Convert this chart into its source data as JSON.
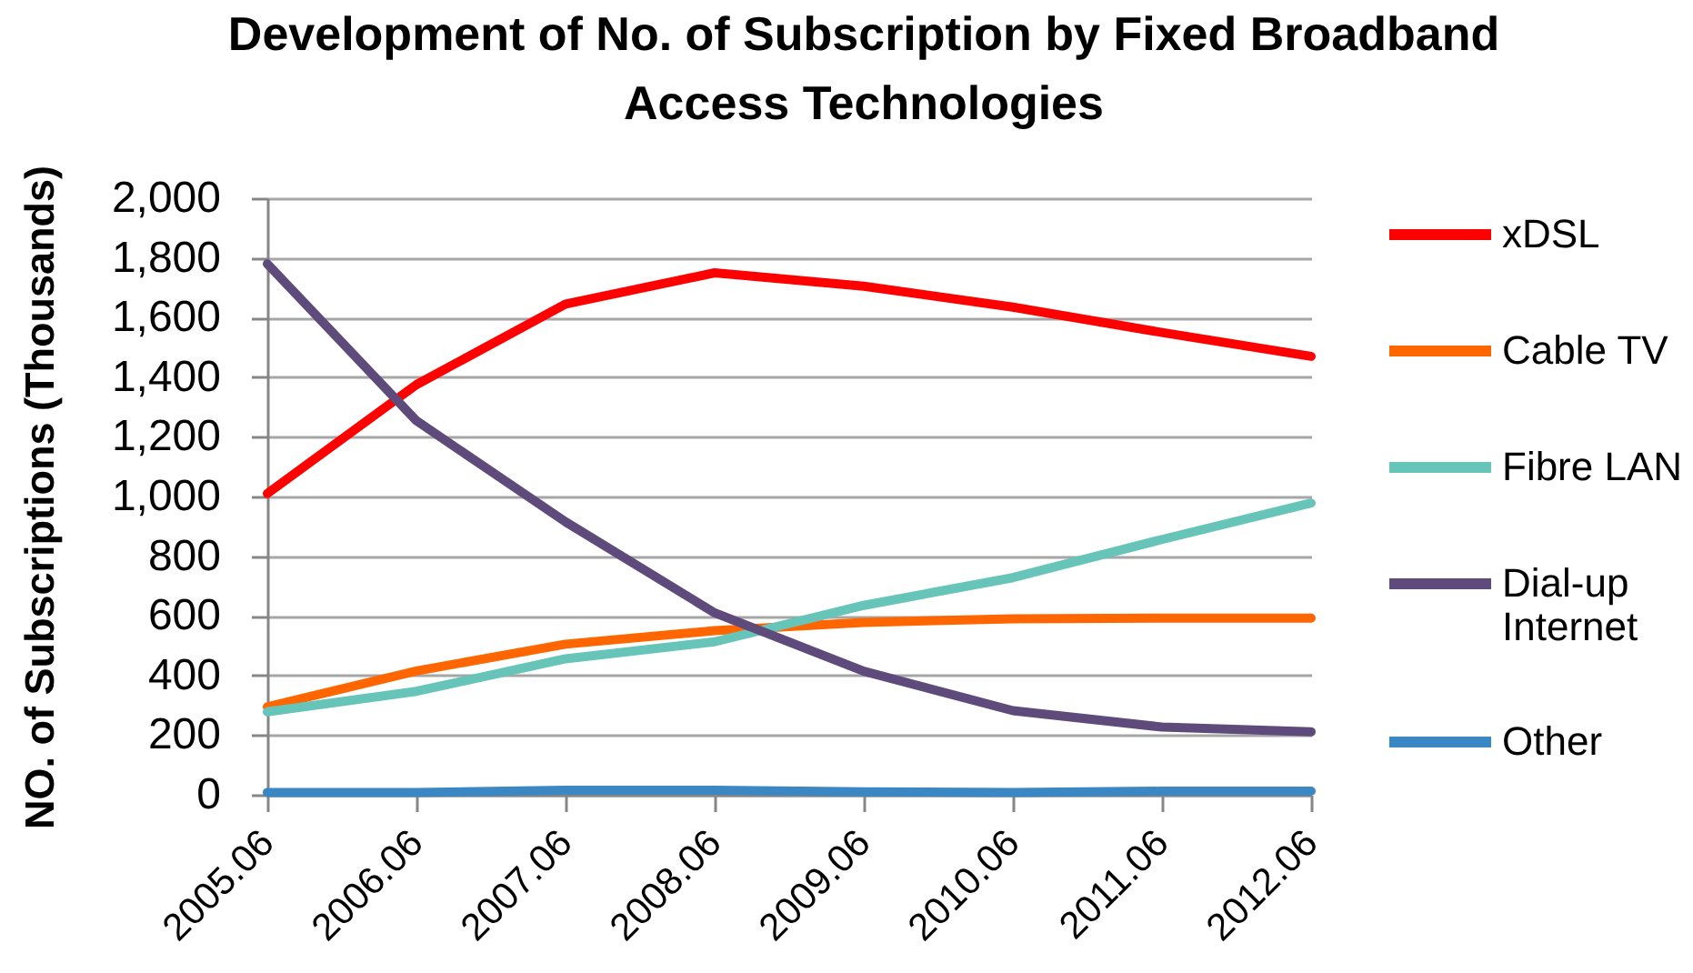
{
  "chart_data": {
    "type": "line",
    "title": "Development of No. of Subscription by Fixed Broadband Access Technologies",
    "ylabel": "NO. of Subscriptions (Thousands)",
    "categories": [
      "2005.06",
      "2006.06",
      "2007.06",
      "2008.06",
      "2009.06",
      "2010.06",
      "2011.06",
      "2012.06"
    ],
    "series": [
      {
        "name": "xDSL",
        "color": "#ff0000",
        "values": [
          1010,
          1375,
          1645,
          1750,
          1705,
          1635,
          1550,
          1470
        ]
      },
      {
        "name": "Cable TV",
        "color": "#ff6600",
        "values": [
          295,
          415,
          505,
          550,
          578,
          590,
          592,
          592
        ]
      },
      {
        "name": "Fibre LAN",
        "color": "#66c5b8",
        "values": [
          278,
          347,
          456,
          513,
          635,
          728,
          856,
          978
        ]
      },
      {
        "name": "Dial-up Internet",
        "color": "#5f4b7b",
        "values": [
          1780,
          1254,
          915,
          610,
          414,
          282,
          227,
          211
        ]
      },
      {
        "name": "Other",
        "color": "#3a87c3",
        "values": [
          8,
          8,
          15,
          15,
          10,
          8,
          12,
          12
        ]
      }
    ],
    "ylim": [
      0,
      2000
    ],
    "yticks": [
      0,
      200,
      400,
      600,
      800,
      {
        "value": 1000,
        "label": "1,000"
      },
      {
        "value": 1200,
        "label": "1,200"
      },
      {
        "value": 1400,
        "label": "1,400"
      },
      {
        "value": 1600,
        "label": "1,600"
      },
      {
        "value": 1800,
        "label": "1,800"
      },
      {
        "value": 2000,
        "label": "2,000"
      }
    ],
    "grid": "y",
    "legend": "right",
    "marker": "none",
    "line_style": "solid"
  }
}
